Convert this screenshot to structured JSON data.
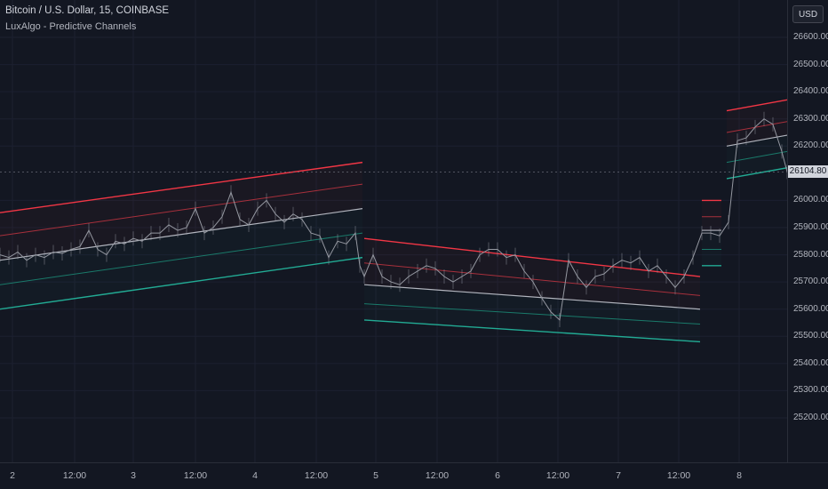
{
  "header": {
    "symbol_title": "Bitcoin / U.S. Dollar, 15, COINBASE",
    "indicator_title": "LuxAlgo - Predictive Channels"
  },
  "price_axis": {
    "currency": "USD",
    "labels": [
      "26600.00",
      "26500.00",
      "26400.00",
      "26300.00",
      "26200.00",
      "26000.00",
      "25900.00",
      "25800.00",
      "25700.00",
      "25600.00",
      "25500.00",
      "25400.00",
      "25300.00",
      "25200.00"
    ],
    "last_price": "26104.80"
  },
  "time_axis": {
    "labels": [
      "2",
      "12:00",
      "3",
      "12:00",
      "4",
      "12:00",
      "5",
      "12:00",
      "6",
      "12:00",
      "7",
      "12:00",
      "8"
    ]
  },
  "colors": {
    "background": "#131722",
    "upper_band": "#f23645",
    "upper_mid": "#a8303c",
    "center": "#b2b5be",
    "lower_mid": "#1a7a6a",
    "lower_band": "#22ab94",
    "price": "#9598a1"
  },
  "chart_data": {
    "type": "line",
    "title": "Bitcoin / U.S. Dollar, 15, COINBASE",
    "ylim": [
      25150,
      26700
    ],
    "y_ticks": [
      26600,
      26500,
      26400,
      26300,
      26200,
      26000,
      25900,
      25800,
      25700,
      25600,
      25500,
      25400,
      25300,
      25200
    ],
    "x_ticks": [
      "2",
      "12:00",
      "3",
      "12:00",
      "4",
      "12:00",
      "5",
      "12:00",
      "6",
      "12:00",
      "7",
      "12:00",
      "8"
    ],
    "last_price": 26104.8,
    "price_series": {
      "x": [
        0,
        10,
        20,
        30,
        40,
        50,
        60,
        70,
        80,
        90,
        100,
        110,
        120,
        130,
        140,
        150,
        160,
        170,
        180,
        190,
        200,
        210,
        220,
        230,
        240,
        250,
        260,
        270,
        280,
        290,
        300,
        310,
        320,
        330,
        340,
        350,
        360,
        370,
        380,
        390,
        400,
        405,
        410,
        420,
        430,
        440,
        450,
        460,
        470,
        480,
        490,
        500,
        510,
        520,
        530,
        540,
        550,
        560,
        570,
        580,
        590,
        600,
        610,
        620,
        630,
        640,
        650,
        660,
        670,
        680,
        690,
        700,
        710,
        720,
        730,
        740,
        750,
        760,
        770,
        780,
        790,
        800,
        810,
        820,
        830,
        840,
        850,
        860,
        870,
        880,
        886
      ],
      "y": [
        25800,
        25790,
        25810,
        25780,
        25800,
        25790,
        25810,
        25805,
        25820,
        25830,
        25890,
        25820,
        25800,
        25850,
        25840,
        25860,
        25850,
        25880,
        25880,
        25910,
        25890,
        25900,
        25970,
        25880,
        25900,
        25940,
        26030,
        25930,
        25910,
        25970,
        26000,
        25950,
        25920,
        25950,
        25930,
        25880,
        25870,
        25790,
        25850,
        25840,
        25880,
        25760,
        25720,
        25800,
        25720,
        25700,
        25690,
        25720,
        25740,
        25760,
        25750,
        25720,
        25700,
        25720,
        25740,
        25800,
        25820,
        25820,
        25790,
        25800,
        25740,
        25700,
        25640,
        25590,
        25560,
        25780,
        25720,
        25680,
        25720,
        25730,
        25760,
        25780,
        25770,
        25790,
        25740,
        25760,
        25720,
        25680,
        25720,
        25790,
        25880,
        25880,
        25870,
        25920,
        26220,
        26230,
        26270,
        26300,
        26280,
        26180,
        26104.8
      ]
    },
    "channels": [
      {
        "x": [
          0,
          408
        ],
        "upper": [
          25955,
          26140
        ],
        "upper_mid": [
          25870,
          26060
        ],
        "center": [
          25780,
          25970
        ],
        "lower_mid": [
          25690,
          25880
        ],
        "lower": [
          25600,
          25790
        ]
      },
      {
        "x": [
          410,
          788
        ],
        "upper": [
          25860,
          25720
        ],
        "upper_mid": [
          25770,
          25650
        ],
        "center": [
          25690,
          25600
        ],
        "lower_mid": [
          25620,
          25545
        ],
        "lower": [
          25560,
          25480
        ]
      },
      {
        "x": [
          790,
          812
        ],
        "upper": [
          26000,
          26000
        ],
        "upper_mid": [
          25940,
          25940
        ],
        "center": [
          25890,
          25890
        ],
        "lower_mid": [
          25820,
          25820
        ],
        "lower": [
          25760,
          25760
        ]
      },
      {
        "x": [
          818,
          886
        ],
        "upper": [
          26330,
          26370
        ],
        "upper_mid": [
          26250,
          26290
        ],
        "center": [
          26200,
          26240
        ],
        "lower_mid": [
          26140,
          26180
        ],
        "lower": [
          26080,
          26120
        ]
      }
    ]
  }
}
